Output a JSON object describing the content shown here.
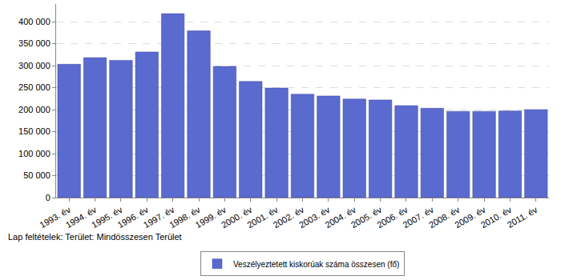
{
  "chart_data": {
    "type": "bar",
    "categories": [
      "1993. év",
      "1994. év",
      "1995. év",
      "1996. év",
      "1997. év",
      "1998. év",
      "1999. év",
      "2000. év",
      "2001. év",
      "2002. év",
      "2003. év",
      "2004. év",
      "2005. év",
      "2006. év",
      "2007. év",
      "2008. év",
      "2009. év",
      "2010. év",
      "2011. év"
    ],
    "series": [
      {
        "name": "Veszélyeztetett kiskorúak száma összesen (fő)",
        "color": "#5a6acf",
        "values": [
          303000,
          318000,
          312000,
          331000,
          418000,
          379000,
          298000,
          264000,
          249000,
          235000,
          231000,
          224000,
          222000,
          209000,
          203000,
          196000,
          196000,
          197000,
          200000
        ]
      }
    ],
    "ylim": [
      0,
      440000
    ],
    "yticks": [
      0,
      {
        "value": 50000,
        "label": "50 000"
      },
      {
        "value": 100000,
        "label": "100 000"
      },
      {
        "value": 150000,
        "label": "150 000"
      },
      {
        "value": 200000,
        "label": "200 000"
      },
      {
        "value": 250000,
        "label": "250 000"
      },
      {
        "value": 300000,
        "label": "300 000"
      },
      {
        "value": 350000,
        "label": "350 000"
      },
      {
        "value": 400000,
        "label": "400 000"
      }
    ],
    "grid": true,
    "legend": "bottom",
    "annotations": [
      "Lap feltételek: Terület: Mindösszesen Terület"
    ]
  }
}
